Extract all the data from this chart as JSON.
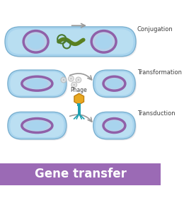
{
  "bg_color": "#ffffff",
  "cell_fill_light": "#c8e8f5",
  "cell_fill": "#a8d4ee",
  "cell_edge": "#7ab0d0",
  "nucleus_fill": "#b8d0e8",
  "nucleus_edge": "#9060a8",
  "plasmid_color": "#4a7a30",
  "pilus_color": "#5a8020",
  "footer_bg": "#9b6ab5",
  "footer_text": "Gene transfer",
  "footer_text_color": "#ffffff",
  "label_conjugation": "Conjugation",
  "label_transformation": "Transformation",
  "label_transduction": "Transduction",
  "label_phage": "Phage",
  "phage_head_color": "#e8a820",
  "phage_tail_color": "#20a0b0",
  "arrow_color": "#999999",
  "dna_particle_color": "#c0c0c0",
  "shadow_color": "#d0d0d8"
}
